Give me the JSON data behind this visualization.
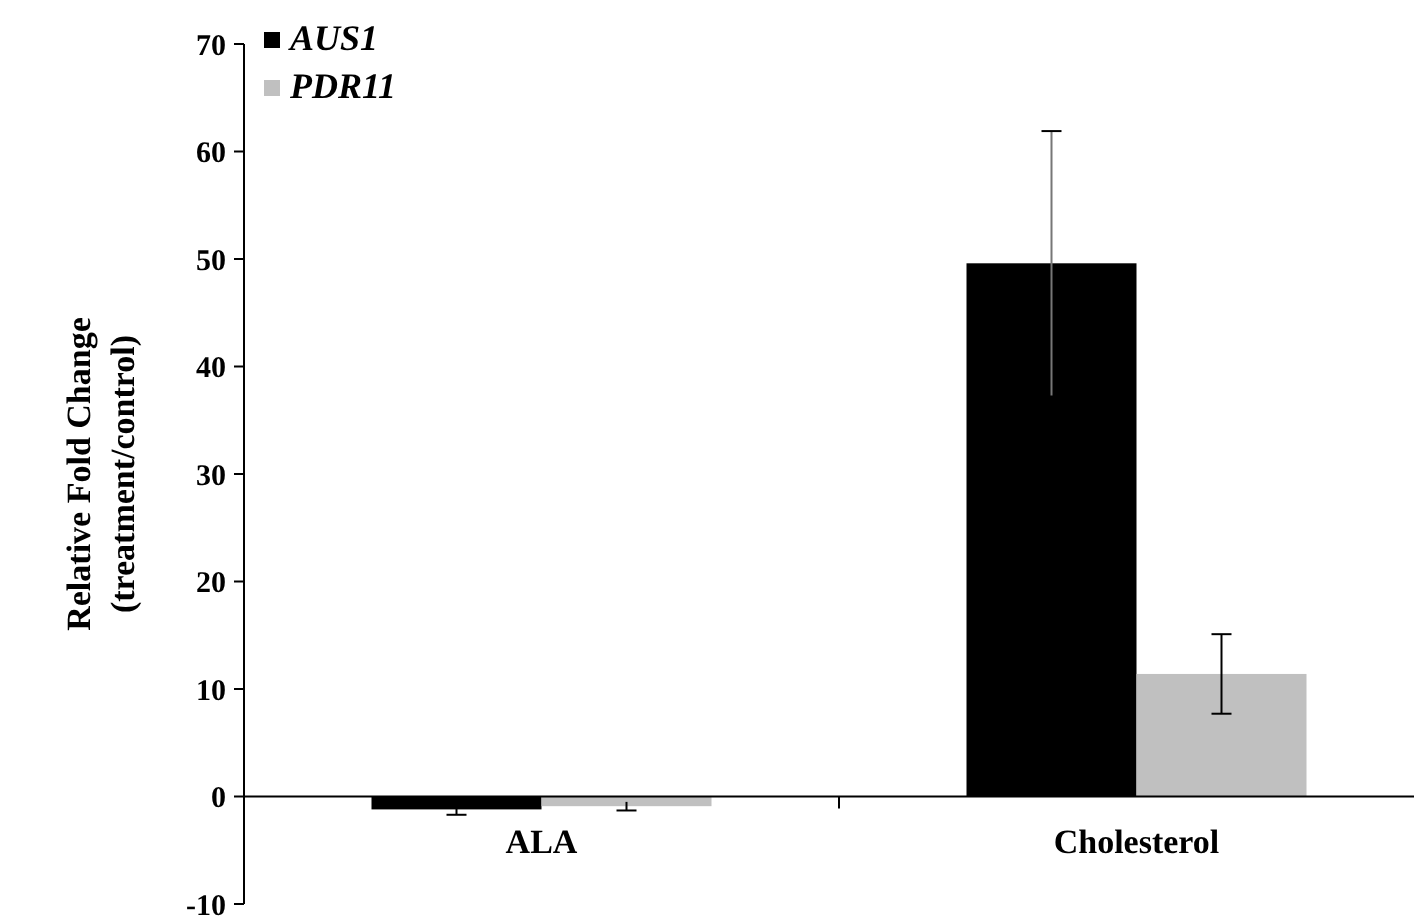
{
  "chart_data": {
    "type": "bar",
    "ylabel": "Relative Fold Change\n(treatment/control)",
    "categories": [
      "ALA",
      "Cholesterol"
    ],
    "series": [
      {
        "name": "AUS1",
        "color": "#000000",
        "values": [
          -1.2,
          49.6
        ],
        "errors": [
          0.5,
          12.3
        ]
      },
      {
        "name": "PDR11",
        "color": "#c0c0c0",
        "values": [
          -0.9,
          11.4
        ],
        "errors": [
          0.4,
          3.7
        ]
      }
    ],
    "ylim": [
      -10,
      70
    ],
    "yticks": [
      -10,
      0,
      10,
      20,
      30,
      40,
      50,
      60,
      70
    ],
    "legend": "top left",
    "grid": false
  }
}
